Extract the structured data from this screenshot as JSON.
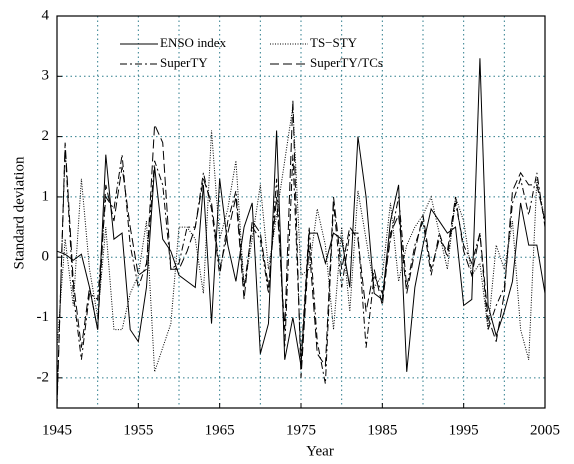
{
  "chart_data": {
    "type": "line",
    "x_label": "Year",
    "y_label": "Standard deviation",
    "xlim": [
      1945,
      2005
    ],
    "xticks": [
      1945,
      1955,
      1965,
      1975,
      1985,
      1995,
      2005
    ],
    "xgrid": [
      1950,
      1955,
      1960,
      1965,
      1970,
      1975,
      1980,
      1985,
      1990,
      1995,
      2000
    ],
    "ylim": [
      -2.5,
      4
    ],
    "yticks": [
      -2,
      -1,
      0,
      1,
      2,
      3,
      4
    ],
    "grid": true,
    "grid_color": "#2e7d8c",
    "legend": "top",
    "x": [
      1945,
      1946,
      1947,
      1948,
      1949,
      1950,
      1951,
      1952,
      1953,
      1954,
      1955,
      1956,
      1957,
      1958,
      1959,
      1960,
      1961,
      1962,
      1963,
      1964,
      1965,
      1966,
      1967,
      1968,
      1969,
      1970,
      1971,
      1972,
      1973,
      1974,
      1975,
      1976,
      1977,
      1978,
      1979,
      1980,
      1981,
      1982,
      1983,
      1984,
      1985,
      1986,
      1987,
      1988,
      1989,
      1990,
      1991,
      1992,
      1993,
      1994,
      1995,
      1996,
      1997,
      1998,
      1999,
      2000,
      2001,
      2002,
      2003,
      2004,
      2005
    ],
    "series": [
      {
        "name": "ENSO index",
        "color": "#000000",
        "style": "solid",
        "values": [
          0.1,
          0.05,
          -0.05,
          0.05,
          -0.5,
          -1.2,
          1.7,
          0.3,
          0.4,
          -1.2,
          -1.4,
          -0.5,
          1.5,
          0.3,
          0.1,
          -0.3,
          -0.4,
          -0.5,
          1.2,
          -1.1,
          1.3,
          0.2,
          -0.4,
          0.5,
          0.9,
          -1.6,
          -1.1,
          2.1,
          -1.7,
          -1.0,
          -1.8,
          0.4,
          0.4,
          -0.1,
          0.4,
          0.3,
          -0.5,
          2.0,
          1.0,
          -0.6,
          -0.7,
          0.6,
          1.2,
          -1.9,
          -0.5,
          0.2,
          0.8,
          0.6,
          0.4,
          0.5,
          -0.8,
          -0.7,
          3.3,
          -0.8,
          -1.3,
          -0.9,
          -0.4,
          0.9,
          0.2,
          0.2,
          -0.6
        ]
      },
      {
        "name": "TS−STY",
        "color": "#000000",
        "style": "dotted",
        "values": [
          -1.5,
          0.3,
          -0.8,
          1.3,
          -0.2,
          -1.0,
          0.5,
          -1.2,
          -1.2,
          -0.6,
          -0.3,
          0.6,
          -1.9,
          -1.5,
          -1.1,
          0.5,
          0.5,
          0.3,
          -0.6,
          2.1,
          0.3,
          0.8,
          1.6,
          -0.5,
          0.3,
          1.2,
          -0.2,
          0.7,
          1.6,
          2.5,
          -0.3,
          -0.2,
          0.8,
          0.2,
          -1.2,
          0.5,
          -0.9,
          1.1,
          0.3,
          -0.5,
          -0.3,
          0.9,
          -0.4,
          0.2,
          0.5,
          0.7,
          1.0,
          0.4,
          -0.2,
          1.0,
          0.6,
          -0.3,
          -0.1,
          -1.2,
          0.2,
          -0.2,
          0.6,
          -1.2,
          -1.7,
          1.3,
          0.6
        ]
      },
      {
        "name": "SuperTY",
        "color": "#000000",
        "style": "dashdot",
        "values": [
          -2.4,
          1.8,
          -0.6,
          -1.7,
          -0.6,
          -0.7,
          1.0,
          0.8,
          1.7,
          0.2,
          -0.5,
          -0.1,
          1.6,
          1.2,
          -0.2,
          -0.1,
          0.5,
          0.5,
          1.4,
          0.8,
          -0.3,
          0.6,
          1.1,
          -0.5,
          0.5,
          0.3,
          -0.6,
          1.3,
          -1.5,
          1.7,
          -1.7,
          0.5,
          -1.4,
          -2.1,
          0.9,
          -0.5,
          0.4,
          0.4,
          -1.5,
          -0.3,
          -0.6,
          0.3,
          1.0,
          -0.5,
          0.2,
          0.6,
          -0.3,
          0.4,
          0.0,
          0.9,
          0.2,
          -0.1,
          0.4,
          -1.2,
          -0.8,
          -0.5,
          0.9,
          1.3,
          0.7,
          1.4,
          0.5
        ]
      },
      {
        "name": "SuperTY/TCs",
        "color": "#000000",
        "style": "dashed",
        "values": [
          -2.5,
          1.9,
          -0.4,
          -1.5,
          -0.5,
          -1.2,
          1.2,
          0.6,
          1.5,
          0.5,
          -0.3,
          -0.2,
          2.2,
          1.9,
          -0.2,
          -0.2,
          0.1,
          0.5,
          1.3,
          0.9,
          -0.2,
          0.4,
          1.0,
          -0.7,
          0.6,
          0.4,
          -0.5,
          1.0,
          -1.2,
          2.6,
          -2.0,
          0.2,
          -1.6,
          -1.8,
          1.0,
          -0.2,
          0.5,
          0.3,
          -0.9,
          -0.2,
          -0.8,
          0.4,
          0.7,
          -0.6,
          0.1,
          0.7,
          -0.2,
          0.3,
          0.1,
          1.0,
          0.1,
          -0.3,
          0.4,
          -1.0,
          -1.4,
          -0.6,
          1.1,
          1.4,
          1.2,
          1.2,
          0.6
        ]
      }
    ]
  }
}
